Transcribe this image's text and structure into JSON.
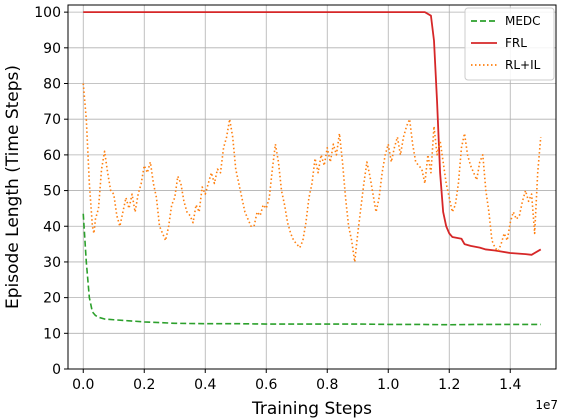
{
  "chart_data": {
    "type": "line",
    "xlabel": "Training Steps",
    "ylabel": "Episode Length (Time Steps)",
    "x_multiplier_label": "1e7",
    "xlim": [
      -0.05,
      1.55
    ],
    "ylim": [
      0,
      102
    ],
    "grid": true,
    "legend_position": "top-right",
    "xticks": [
      0.0,
      0.2,
      0.4,
      0.6,
      0.8,
      1.0,
      1.2,
      1.4
    ],
    "xtick_labels": [
      "0.0",
      "0.2",
      "0.4",
      "0.6",
      "0.8",
      "1.0",
      "1.2",
      "1.4"
    ],
    "yticks": [
      0,
      10,
      20,
      30,
      40,
      50,
      60,
      70,
      80,
      90,
      100
    ],
    "ytick_labels": [
      "0",
      "10",
      "20",
      "30",
      "40",
      "50",
      "60",
      "70",
      "80",
      "90",
      "100"
    ],
    "series": [
      {
        "name": "MEDC",
        "color": "#2ca02c",
        "dash": "dashed",
        "points": [
          [
            0,
            43.5
          ],
          [
            0.01,
            30
          ],
          [
            0.02,
            20
          ],
          [
            0.03,
            16
          ],
          [
            0.04,
            15
          ],
          [
            0.05,
            14.5
          ],
          [
            0.07,
            14
          ],
          [
            0.1,
            13.8
          ],
          [
            0.2,
            13.2
          ],
          [
            0.3,
            12.8
          ],
          [
            0.4,
            12.7
          ],
          [
            0.5,
            12.7
          ],
          [
            0.6,
            12.6
          ],
          [
            0.7,
            12.6
          ],
          [
            0.8,
            12.6
          ],
          [
            0.9,
            12.6
          ],
          [
            1.0,
            12.5
          ],
          [
            1.1,
            12.5
          ],
          [
            1.2,
            12.4
          ],
          [
            1.3,
            12.5
          ],
          [
            1.4,
            12.5
          ],
          [
            1.5,
            12.5
          ]
        ]
      },
      {
        "name": "FRL",
        "color": "#d62728",
        "dash": "solid",
        "points": [
          [
            0,
            100
          ],
          [
            0.5,
            100
          ],
          [
            1.0,
            100
          ],
          [
            1.12,
            100
          ],
          [
            1.14,
            99
          ],
          [
            1.15,
            92
          ],
          [
            1.16,
            75
          ],
          [
            1.17,
            55
          ],
          [
            1.18,
            44
          ],
          [
            1.19,
            40
          ],
          [
            1.2,
            38
          ],
          [
            1.21,
            37
          ],
          [
            1.24,
            36.5
          ],
          [
            1.25,
            35
          ],
          [
            1.27,
            34.5
          ],
          [
            1.3,
            34
          ],
          [
            1.32,
            33.5
          ],
          [
            1.35,
            33.2
          ],
          [
            1.4,
            32.5
          ],
          [
            1.45,
            32.2
          ],
          [
            1.47,
            32
          ],
          [
            1.5,
            33.5
          ]
        ]
      },
      {
        "name": "RL+IL",
        "color": "#ff7f0e",
        "dash": "dotted",
        "points": [
          [
            0,
            80
          ],
          [
            0.01,
            70
          ],
          [
            0.02,
            52
          ],
          [
            0.03,
            40
          ],
          [
            0.035,
            38
          ],
          [
            0.04,
            42
          ],
          [
            0.05,
            45
          ],
          [
            0.06,
            56
          ],
          [
            0.07,
            61
          ],
          [
            0.08,
            55
          ],
          [
            0.09,
            50
          ],
          [
            0.1,
            49
          ],
          [
            0.11,
            43
          ],
          [
            0.12,
            40
          ],
          [
            0.13,
            44
          ],
          [
            0.14,
            48
          ],
          [
            0.15,
            45
          ],
          [
            0.16,
            49
          ],
          [
            0.17,
            44
          ],
          [
            0.18,
            49
          ],
          [
            0.19,
            52
          ],
          [
            0.2,
            57
          ],
          [
            0.21,
            55
          ],
          [
            0.22,
            58
          ],
          [
            0.23,
            52
          ],
          [
            0.24,
            48
          ],
          [
            0.25,
            40
          ],
          [
            0.26,
            38
          ],
          [
            0.27,
            36
          ],
          [
            0.28,
            40
          ],
          [
            0.29,
            46
          ],
          [
            0.3,
            48
          ],
          [
            0.31,
            54
          ],
          [
            0.32,
            52
          ],
          [
            0.33,
            47
          ],
          [
            0.34,
            44
          ],
          [
            0.35,
            43
          ],
          [
            0.36,
            41
          ],
          [
            0.37,
            46
          ],
          [
            0.38,
            44
          ],
          [
            0.39,
            51
          ],
          [
            0.4,
            49
          ],
          [
            0.42,
            55
          ],
          [
            0.43,
            52
          ],
          [
            0.44,
            56
          ],
          [
            0.45,
            55
          ],
          [
            0.46,
            62
          ],
          [
            0.47,
            65
          ],
          [
            0.48,
            70
          ],
          [
            0.49,
            65
          ],
          [
            0.5,
            56
          ],
          [
            0.51,
            52
          ],
          [
            0.52,
            48
          ],
          [
            0.53,
            44
          ],
          [
            0.54,
            42
          ],
          [
            0.55,
            40
          ],
          [
            0.56,
            40
          ],
          [
            0.57,
            44
          ],
          [
            0.58,
            43
          ],
          [
            0.59,
            46
          ],
          [
            0.6,
            45
          ],
          [
            0.61,
            48
          ],
          [
            0.62,
            56
          ],
          [
            0.63,
            63
          ],
          [
            0.64,
            58
          ],
          [
            0.65,
            50
          ],
          [
            0.66,
            46
          ],
          [
            0.67,
            41
          ],
          [
            0.68,
            38
          ],
          [
            0.69,
            36
          ],
          [
            0.7,
            35
          ],
          [
            0.71,
            34
          ],
          [
            0.72,
            36
          ],
          [
            0.73,
            41
          ],
          [
            0.74,
            48
          ],
          [
            0.75,
            52
          ],
          [
            0.76,
            59
          ],
          [
            0.77,
            55
          ],
          [
            0.78,
            60
          ],
          [
            0.79,
            57
          ],
          [
            0.8,
            62
          ],
          [
            0.81,
            58
          ],
          [
            0.82,
            63
          ],
          [
            0.83,
            60
          ],
          [
            0.84,
            66
          ],
          [
            0.85,
            58
          ],
          [
            0.86,
            48
          ],
          [
            0.87,
            40
          ],
          [
            0.88,
            36
          ],
          [
            0.89,
            30
          ],
          [
            0.9,
            38
          ],
          [
            0.91,
            45
          ],
          [
            0.92,
            52
          ],
          [
            0.93,
            58
          ],
          [
            0.94,
            54
          ],
          [
            0.95,
            49
          ],
          [
            0.96,
            44
          ],
          [
            0.97,
            48
          ],
          [
            0.98,
            55
          ],
          [
            0.99,
            60
          ],
          [
            1.0,
            63
          ],
          [
            1.01,
            58
          ],
          [
            1.02,
            62
          ],
          [
            1.03,
            65
          ],
          [
            1.04,
            60
          ],
          [
            1.05,
            65
          ],
          [
            1.06,
            68
          ],
          [
            1.07,
            70
          ],
          [
            1.08,
            63
          ],
          [
            1.09,
            58
          ],
          [
            1.1,
            57
          ],
          [
            1.11,
            56
          ],
          [
            1.12,
            52
          ],
          [
            1.13,
            60
          ],
          [
            1.14,
            55
          ],
          [
            1.15,
            68
          ],
          [
            1.16,
            60
          ],
          [
            1.17,
            64
          ],
          [
            1.18,
            58
          ],
          [
            1.19,
            52
          ],
          [
            1.2,
            48
          ],
          [
            1.21,
            44
          ],
          [
            1.22,
            46
          ],
          [
            1.23,
            52
          ],
          [
            1.24,
            62
          ],
          [
            1.25,
            66
          ],
          [
            1.26,
            60
          ],
          [
            1.27,
            57
          ],
          [
            1.28,
            55
          ],
          [
            1.29,
            53
          ],
          [
            1.3,
            58
          ],
          [
            1.31,
            60
          ],
          [
            1.32,
            50
          ],
          [
            1.33,
            44
          ],
          [
            1.34,
            36
          ],
          [
            1.35,
            34
          ],
          [
            1.36,
            33
          ],
          [
            1.37,
            35
          ],
          [
            1.38,
            38
          ],
          [
            1.39,
            36
          ],
          [
            1.4,
            41
          ],
          [
            1.41,
            44
          ],
          [
            1.42,
            42
          ],
          [
            1.43,
            43
          ],
          [
            1.44,
            47
          ],
          [
            1.45,
            50
          ],
          [
            1.46,
            47
          ],
          [
            1.47,
            49
          ],
          [
            1.48,
            38
          ],
          [
            1.49,
            55
          ],
          [
            1.5,
            65
          ]
        ]
      }
    ]
  }
}
